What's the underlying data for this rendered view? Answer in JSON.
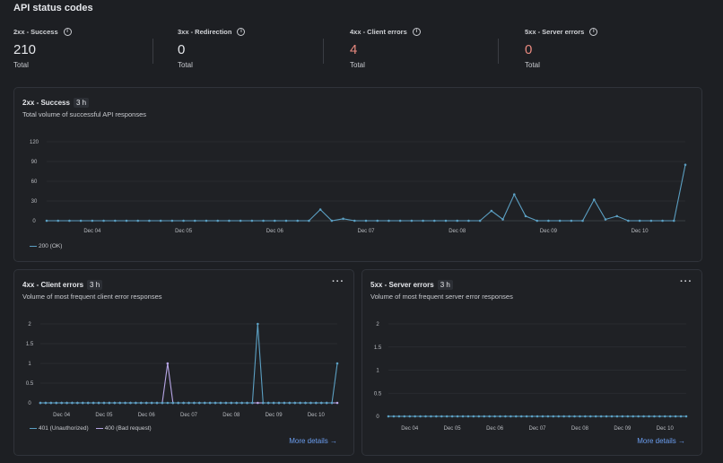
{
  "page_title": "API status codes",
  "stats": [
    {
      "label": "2xx - Success",
      "value": "210",
      "sub": "Total",
      "error": false
    },
    {
      "label": "3xx - Redirection",
      "value": "0",
      "sub": "Total",
      "error": false
    },
    {
      "label": "4xx - Client errors",
      "value": "4",
      "sub": "Total",
      "error": true
    },
    {
      "label": "5xx - Server errors",
      "value": "0",
      "sub": "Total",
      "error": true
    }
  ],
  "cards": {
    "success": {
      "title": "2xx - Success",
      "badge": "3 h",
      "subtitle": "Total volume of successful API responses"
    },
    "client": {
      "title": "4xx - Client errors",
      "badge": "3 h",
      "subtitle": "Volume of most frequent client error responses",
      "more": "More details →"
    },
    "server": {
      "title": "5xx - Server errors",
      "badge": "3 h",
      "subtitle": "Volume of most frequent server error responses",
      "more": "More details →"
    }
  },
  "colors": {
    "series_blue": "#5b9fc2",
    "series_purple": "#b7a6e6",
    "error_value": "#e8897f",
    "link": "#6b9ef0"
  },
  "chart_data": [
    {
      "type": "line",
      "interval": "3 h",
      "x_tick_labels": [
        "Dec 04",
        "Dec 05",
        "Dec 06",
        "Dec 07",
        "Dec 08",
        "Dec 09",
        "Dec 10"
      ],
      "y_ticks": [
        0,
        30,
        60,
        90,
        120
      ],
      "ylim": [
        0,
        120
      ],
      "grid": true,
      "legend": "bottom-left",
      "series": [
        {
          "name": "200 (OK)",
          "color": "#5b9fc2",
          "values": [
            0,
            0,
            0,
            0,
            0,
            0,
            0,
            0,
            0,
            0,
            0,
            0,
            0,
            0,
            0,
            0,
            0,
            0,
            0,
            0,
            0,
            0,
            0,
            0,
            17,
            0,
            3,
            0,
            0,
            0,
            0,
            0,
            0,
            0,
            0,
            0,
            0,
            0,
            0,
            15,
            2,
            40,
            7,
            0,
            0,
            0,
            0,
            0,
            32,
            2,
            7,
            0,
            0,
            0,
            0,
            0,
            85
          ]
        }
      ]
    },
    {
      "type": "line",
      "interval": "3 h",
      "x_tick_labels": [
        "Dec 04",
        "Dec 05",
        "Dec 06",
        "Dec 07",
        "Dec 08",
        "Dec 09",
        "Dec 10"
      ],
      "y_ticks": [
        0,
        0.5,
        1,
        1.5,
        2
      ],
      "ylim": [
        0,
        2
      ],
      "grid": true,
      "legend": "bottom-left",
      "series": [
        {
          "name": "401 (Unauthorized)",
          "color": "#5b9fc2",
          "values": [
            0,
            0,
            0,
            0,
            0,
            0,
            0,
            0,
            0,
            0,
            0,
            0,
            0,
            0,
            0,
            0,
            0,
            0,
            0,
            0,
            0,
            0,
            0,
            0,
            0,
            0,
            0,
            0,
            0,
            0,
            0,
            0,
            0,
            0,
            0,
            0,
            0,
            0,
            0,
            0,
            0,
            2,
            0,
            0,
            0,
            0,
            0,
            0,
            0,
            0,
            0,
            0,
            0,
            0,
            0,
            0,
            1
          ]
        },
        {
          "name": "400 (Bad request)",
          "color": "#b7a6e6",
          "values": [
            0,
            0,
            0,
            0,
            0,
            0,
            0,
            0,
            0,
            0,
            0,
            0,
            0,
            0,
            0,
            0,
            0,
            0,
            0,
            0,
            0,
            0,
            0,
            0,
            1,
            0,
            0,
            0,
            0,
            0,
            0,
            0,
            0,
            0,
            0,
            0,
            0,
            0,
            0,
            0,
            0,
            0,
            0,
            0,
            0,
            0,
            0,
            0,
            0,
            0,
            0,
            0,
            0,
            0,
            0,
            0,
            0
          ]
        }
      ]
    },
    {
      "type": "line",
      "interval": "3 h",
      "x_tick_labels": [
        "Dec 04",
        "Dec 05",
        "Dec 06",
        "Dec 07",
        "Dec 08",
        "Dec 09",
        "Dec 10"
      ],
      "y_ticks": [
        0,
        0.5,
        1,
        1.5,
        2
      ],
      "ylim": [
        0,
        2
      ],
      "grid": true,
      "legend": "none",
      "series": [
        {
          "color": "#5b9fc2",
          "values": [
            0,
            0,
            0,
            0,
            0,
            0,
            0,
            0,
            0,
            0,
            0,
            0,
            0,
            0,
            0,
            0,
            0,
            0,
            0,
            0,
            0,
            0,
            0,
            0,
            0,
            0,
            0,
            0,
            0,
            0,
            0,
            0,
            0,
            0,
            0,
            0,
            0,
            0,
            0,
            0,
            0,
            0,
            0,
            0,
            0,
            0,
            0,
            0,
            0,
            0,
            0,
            0,
            0,
            0,
            0,
            0,
            0
          ]
        }
      ]
    }
  ]
}
